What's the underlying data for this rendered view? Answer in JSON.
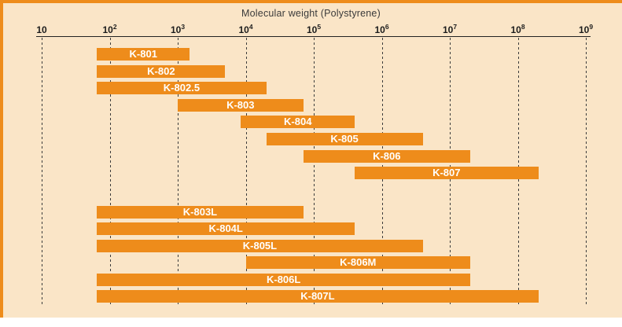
{
  "colors": {
    "bar_orange": "#ee8c1b",
    "panel_peach": "#fae5c7",
    "axis_black": "#222222",
    "label_white": "#ffffff"
  },
  "chart_data": {
    "type": "bar",
    "orientation": "horizontal-range",
    "title": "Molecular weight (Polystyrene)",
    "xlabel": "Molecular weight (Polystyrene)",
    "x_scale": "log",
    "x_min": 10,
    "x_max": 1000000000,
    "x_tick_values": [
      10,
      100,
      1000,
      10000,
      100000,
      1000000,
      10000000,
      100000000,
      1000000000
    ],
    "grid": "dashed-vertical",
    "legend": "none",
    "groups": [
      {
        "name": "analytical-columns",
        "bars": [
          {
            "label": "K-801",
            "range": [
              65,
              1500
            ]
          },
          {
            "label": "K-802",
            "range": [
              65,
              5000
            ]
          },
          {
            "label": "K-802.5",
            "range": [
              65,
              20000
            ]
          },
          {
            "label": "K-803",
            "range": [
              1000,
              70000
            ]
          },
          {
            "label": "K-804",
            "range": [
              8500,
              400000
            ]
          },
          {
            "label": "K-805",
            "range": [
              20000,
              4000000
            ]
          },
          {
            "label": "K-806",
            "range": [
              70000,
              20000000
            ]
          },
          {
            "label": "K-807",
            "range": [
              400000,
              200000000
            ]
          }
        ]
      },
      {
        "name": "linear-columns",
        "bars": [
          {
            "label": "K-803L",
            "range": [
              65,
              70000
            ]
          },
          {
            "label": "K-804L",
            "range": [
              65,
              400000
            ]
          },
          {
            "label": "K-805L",
            "range": [
              65,
              4000000
            ]
          },
          {
            "label": "K-806M",
            "range": [
              10000,
              20000000
            ]
          },
          {
            "label": "K-806L",
            "range": [
              65,
              20000000
            ]
          },
          {
            "label": "K-807L",
            "range": [
              65,
              200000000
            ]
          }
        ]
      }
    ]
  }
}
